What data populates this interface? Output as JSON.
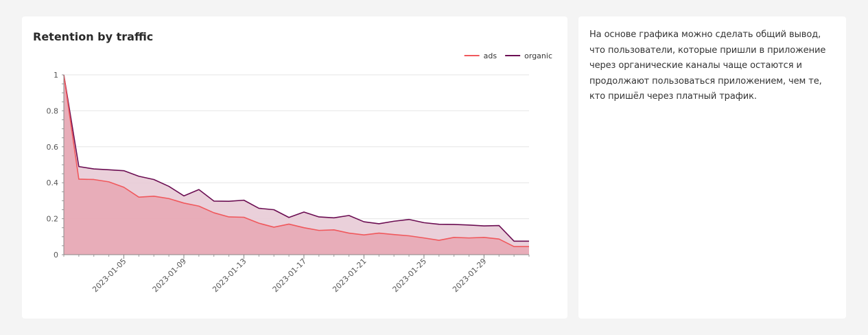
{
  "chart_data": {
    "type": "area",
    "title": "Retention by traffic",
    "xlabel": "",
    "ylabel": "",
    "ylim": [
      0,
      1
    ],
    "y_ticks": [
      "0",
      "0.2",
      "0.4",
      "0.6",
      "0.8",
      "1"
    ],
    "x_tick_labels": [
      "2023-01-05",
      "2023-01-09",
      "2023-01-13",
      "2023-01-17",
      "2023-01-21",
      "2023-01-25",
      "2023-01-29"
    ],
    "legend_position": "top-right",
    "grid": true,
    "x": [
      "2023-01-01",
      "2023-01-02",
      "2023-01-03",
      "2023-01-04",
      "2023-01-05",
      "2023-01-06",
      "2023-01-07",
      "2023-01-08",
      "2023-01-09",
      "2023-01-10",
      "2023-01-11",
      "2023-01-12",
      "2023-01-13",
      "2023-01-14",
      "2023-01-15",
      "2023-01-16",
      "2023-01-17",
      "2023-01-18",
      "2023-01-19",
      "2023-01-20",
      "2023-01-21",
      "2023-01-22",
      "2023-01-23",
      "2023-01-24",
      "2023-01-25",
      "2023-01-26",
      "2023-01-27",
      "2023-01-28",
      "2023-01-29",
      "2023-01-30",
      "2023-01-31",
      "2023-02-01"
    ],
    "series": [
      {
        "name": "ads",
        "color": "#f0585c",
        "fill": "#e8a9b5",
        "values": [
          1.0,
          0.42,
          0.418,
          0.405,
          0.375,
          0.32,
          0.325,
          0.312,
          0.287,
          0.27,
          0.233,
          0.21,
          0.208,
          0.175,
          0.153,
          0.17,
          0.15,
          0.135,
          0.138,
          0.12,
          0.11,
          0.12,
          0.112,
          0.105,
          0.093,
          0.08,
          0.096,
          0.093,
          0.096,
          0.087,
          0.045,
          0.045
        ]
      },
      {
        "name": "organic",
        "color": "#6b0d52",
        "fill": "#e8cbd6",
        "values": [
          1.0,
          0.49,
          0.477,
          0.472,
          0.467,
          0.436,
          0.418,
          0.38,
          0.327,
          0.362,
          0.298,
          0.297,
          0.303,
          0.258,
          0.25,
          0.207,
          0.237,
          0.21,
          0.205,
          0.218,
          0.183,
          0.172,
          0.186,
          0.196,
          0.178,
          0.169,
          0.168,
          0.165,
          0.16,
          0.162,
          0.075,
          0.075
        ]
      }
    ]
  },
  "note": {
    "text": "На основе графика можно сделать общий вывод, что пользователи, которые пришли в приложение через органические каналы чаще остаются и продолжают пользоваться приложением, чем те, кто пришёл через платный трафик."
  }
}
